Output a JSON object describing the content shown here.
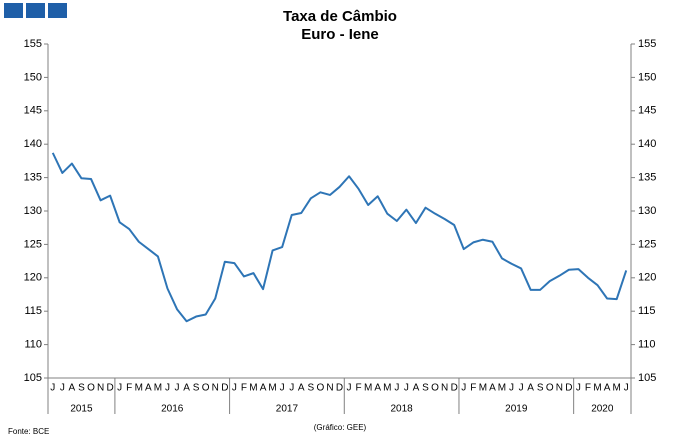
{
  "chart_data": {
    "type": "line",
    "title": "Taxa de Câmbio",
    "subtitle": "Euro - Iene",
    "source": "Fonte: BCE",
    "credit": "(Gráfico: GEE)",
    "categories": [
      "J",
      "J",
      "A",
      "S",
      "O",
      "N",
      "D",
      "J",
      "F",
      "M",
      "A",
      "M",
      "J",
      "J",
      "A",
      "S",
      "O",
      "N",
      "D",
      "J",
      "F",
      "M",
      "A",
      "M",
      "J",
      "J",
      "A",
      "S",
      "O",
      "N",
      "D",
      "J",
      "F",
      "M",
      "A",
      "M",
      "J",
      "J",
      "A",
      "S",
      "O",
      "N",
      "D",
      "J",
      "F",
      "M",
      "A",
      "M",
      "J",
      "J",
      "A",
      "S",
      "O",
      "N",
      "D",
      "J",
      "F",
      "M",
      "A",
      "M",
      "J"
    ],
    "years": [
      "2015",
      "2016",
      "2017",
      "2018",
      "2019",
      "2020"
    ],
    "series": [
      {
        "name": "Euro - Iene",
        "color": "#2e75b6",
        "values": [
          138.7,
          135.7,
          137.1,
          134.9,
          134.8,
          131.6,
          132.3,
          128.3,
          127.3,
          125.4,
          124.3,
          123.2,
          118.4,
          115.3,
          113.5,
          114.2,
          114.5,
          116.9,
          122.4,
          122.2,
          120.2,
          120.7,
          118.3,
          124.1,
          124.6,
          129.4,
          129.7,
          131.9,
          132.8,
          132.4,
          133.6,
          135.2,
          133.3,
          130.9,
          132.2,
          129.6,
          128.5,
          130.2,
          128.2,
          130.5,
          129.6,
          128.8,
          127.9,
          124.3,
          125.3,
          125.7,
          125.4,
          122.9,
          122.1,
          121.4,
          118.2,
          118.2,
          119.5,
          120.3,
          121.2,
          121.3,
          120.0,
          118.9,
          116.9,
          116.8,
          121.1
        ]
      }
    ],
    "ylim": [
      105,
      155
    ],
    "yticks": [
      105,
      110,
      115,
      120,
      125,
      130,
      135,
      140,
      145,
      150,
      155
    ],
    "grid": false
  }
}
